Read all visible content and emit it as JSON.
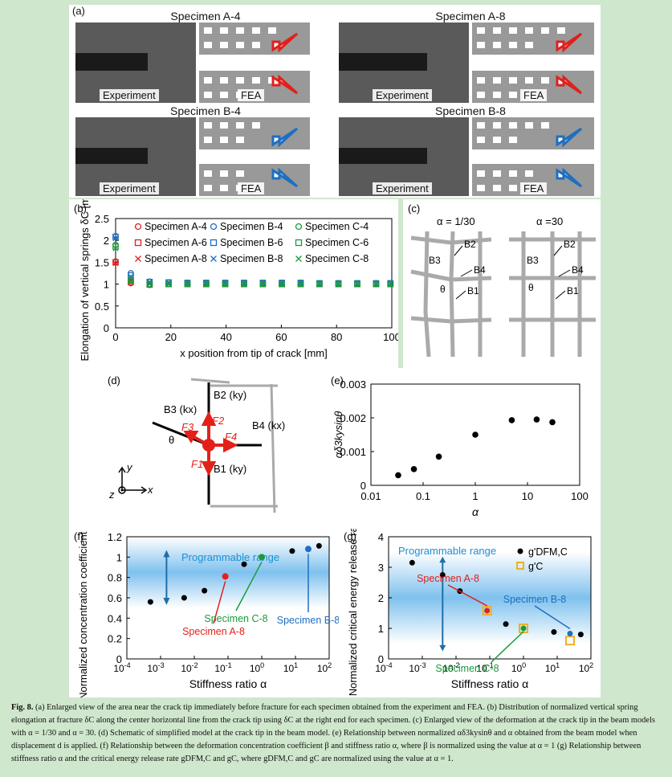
{
  "panel_a": {
    "label": "(a)",
    "specimens": [
      {
        "title": "Specimen A-4",
        "exp": "Experiment",
        "fea": "FEA",
        "arrow_color": "#e0201c"
      },
      {
        "title": "Specimen A-8",
        "exp": "Experiment",
        "fea": "FEA",
        "arrow_color": "#e0201c"
      },
      {
        "title": "Specimen B-4",
        "exp": "Experiment",
        "fea": "FEA",
        "arrow_color": "#1e6fc0"
      },
      {
        "title": "Specimen B-8",
        "exp": "Experiment",
        "fea": "FEA",
        "arrow_color": "#1e6fc0"
      }
    ]
  },
  "panel_c": {
    "label": "(c)",
    "left_title": "α = 1/30",
    "right_title": "α =30",
    "b1": "B1",
    "b2": "B2",
    "b3": "B3",
    "b4": "B4",
    "theta": "θ"
  },
  "panel_d": {
    "label": "(d)",
    "b1": "B1 (ky)",
    "b2": "B2 (ky)",
    "b3": "B3 (kx)",
    "b4": "B4 (kx)",
    "f1": "F1",
    "f2": "F2",
    "f3": "F3",
    "f4": "F4",
    "theta": "θ",
    "axis_x": "x",
    "axis_y": "y",
    "axis_z": "z"
  },
  "chart_data": [
    {
      "panel": "(b)",
      "type": "scatter",
      "xlabel": "x position from tip of crack [mm]",
      "ylabel": "Elongation of vertical springs δC [mm]",
      "xlim": [
        0,
        100
      ],
      "ylim": [
        0,
        2.5
      ],
      "xticks": [
        "0",
        "20",
        "40",
        "60",
        "80",
        "100"
      ],
      "yticks": [
        "0",
        "0.5",
        "1",
        "1.5",
        "2",
        "2.5"
      ],
      "x": [
        0,
        5.5,
        12.3,
        19.2,
        26,
        32.8,
        39.7,
        46.5,
        53.3,
        60.2,
        67,
        73.8,
        80.7,
        87.5,
        94.3,
        99.5
      ],
      "series": [
        {
          "name": "Specimen A-4",
          "color": "#e0201c",
          "marker": "circle",
          "values": [
            1.52,
            1.02,
            0.98,
            1.0,
            1.0,
            1.0,
            1.0,
            1.0,
            1.0,
            1.0,
            1.0,
            1.0,
            1.0,
            1.0,
            1.0,
            1.0
          ]
        },
        {
          "name": "Specimen A-6",
          "color": "#e0201c",
          "marker": "square",
          "values": [
            1.5,
            1.05,
            0.99,
            1.0,
            1.0,
            1.0,
            1.0,
            1.0,
            1.0,
            1.0,
            1.0,
            1.0,
            1.0,
            1.0,
            1.0,
            1.0
          ]
        },
        {
          "name": "Specimen A-8",
          "color": "#e0201c",
          "marker": "x",
          "values": [
            1.48,
            1.1,
            1.02,
            1.0,
            1.0,
            1.0,
            1.0,
            1.0,
            1.0,
            1.0,
            1.0,
            1.0,
            1.0,
            1.0,
            1.0,
            1.0
          ]
        },
        {
          "name": "Specimen B-4",
          "color": "#1e6fc0",
          "marker": "circle",
          "values": [
            2.1,
            1.25,
            1.06,
            1.04,
            1.03,
            1.03,
            1.03,
            1.03,
            1.03,
            1.03,
            1.03,
            1.02,
            1.02,
            1.02,
            1.02,
            1.02
          ]
        },
        {
          "name": "Specimen B-6",
          "color": "#1e6fc0",
          "marker": "square",
          "values": [
            2.08,
            1.2,
            1.05,
            1.04,
            1.03,
            1.03,
            1.03,
            1.03,
            1.03,
            1.03,
            1.03,
            1.02,
            1.02,
            1.02,
            1.02,
            1.02
          ]
        },
        {
          "name": "Specimen B-8",
          "color": "#1e6fc0",
          "marker": "x",
          "values": [
            2.05,
            1.15,
            1.05,
            1.03,
            1.03,
            1.03,
            1.03,
            1.03,
            1.03,
            1.03,
            1.03,
            1.02,
            1.02,
            1.02,
            1.02,
            1.02
          ]
        },
        {
          "name": "Specimen C-4",
          "color": "#1a9a3c",
          "marker": "circle",
          "values": [
            1.9,
            1.1,
            1.0,
            1.0,
            1.0,
            1.0,
            1.0,
            1.0,
            1.0,
            1.0,
            1.0,
            1.0,
            1.0,
            1.0,
            1.0,
            1.0
          ]
        },
        {
          "name": "Specimen C-6",
          "color": "#1a9a3c",
          "marker": "square",
          "values": [
            1.86,
            1.08,
            1.0,
            1.0,
            1.0,
            1.0,
            1.0,
            1.0,
            1.0,
            1.0,
            1.0,
            1.0,
            1.0,
            1.0,
            1.0,
            1.0
          ]
        },
        {
          "name": "Specimen C-8",
          "color": "#1a9a3c",
          "marker": "x",
          "values": [
            1.82,
            1.06,
            1.0,
            1.0,
            1.0,
            1.0,
            1.0,
            1.0,
            1.0,
            1.0,
            1.0,
            1.0,
            1.0,
            1.0,
            1.0,
            1.0
          ]
        }
      ]
    },
    {
      "panel": "(e)",
      "type": "scatter",
      "xscale": "log",
      "xlabel": "α",
      "ylabel": "αδ3kysinθ",
      "xlim": [
        0.01,
        100
      ],
      "ylim": [
        0,
        0.003
      ],
      "xticks": [
        "0.01",
        "0.1",
        "1",
        "10",
        "100"
      ],
      "yticks": [
        "0",
        "0.001",
        "0.002",
        "0.003"
      ],
      "x": [
        0.0333,
        0.0667,
        0.2,
        1,
        5,
        15,
        30
      ],
      "y": [
        0.0003,
        0.00048,
        0.00085,
        0.0015,
        0.00193,
        0.00195,
        0.00187
      ]
    },
    {
      "panel": "(f)",
      "type": "scatter",
      "xscale": "log",
      "xlabel": "Stiffness ratio α",
      "ylabel": "Normalized concentration coefficient β/βα=1",
      "xlim": [
        0.0001,
        100
      ],
      "ylim": [
        0,
        1.2
      ],
      "yticks": [
        "0",
        "0.2",
        "0.4",
        "0.6",
        "0.8",
        "1",
        "1.2"
      ],
      "xticks": [
        "10-4",
        "10-3",
        "10-2",
        "10-1",
        "100",
        "101",
        "102"
      ],
      "range_label": "Programmable range",
      "x": [
        0.0005,
        0.005,
        0.02,
        0.3,
        8,
        50
      ],
      "y": [
        0.56,
        0.6,
        0.67,
        0.93,
        1.06,
        1.11
      ],
      "highlights": [
        {
          "name": "Specimen A-8",
          "x": 0.0833,
          "y": 0.81,
          "color": "#e0201c"
        },
        {
          "name": "Specimen C-8",
          "x": 1,
          "y": 1.0,
          "color": "#1a9a3c"
        },
        {
          "name": "Specimen B-8",
          "x": 24,
          "y": 1.08,
          "color": "#1e6fc0"
        }
      ]
    },
    {
      "panel": "(g)",
      "type": "scatter",
      "xscale": "log",
      "xlabel": "Stiffness ratio α",
      "ylabel": "Normalized critical energy release rate g'C",
      "xlim": [
        0.0001,
        100
      ],
      "ylim": [
        0,
        4
      ],
      "yticks": [
        "0",
        "1",
        "2",
        "3",
        "4"
      ],
      "xticks": [
        "10-4",
        "10-3",
        "10-2",
        "10-1",
        "100",
        "101",
        "102"
      ],
      "range_label": "Programmable range",
      "legend": [
        "g'DFM,C",
        "g'C"
      ],
      "x": [
        0.0005,
        0.004,
        0.013,
        0.3,
        8,
        50
      ],
      "y": [
        3.15,
        2.75,
        2.22,
        1.14,
        0.88,
        0.8
      ],
      "squares": [
        {
          "name": "Specimen A-8",
          "x": 0.0833,
          "y": 1.58,
          "dot": 1.58,
          "color": "#e0201c"
        },
        {
          "name": "Specimen C-8",
          "x": 1,
          "y": 1.0,
          "dot": 1.0,
          "color": "#1a9a3c"
        },
        {
          "name": "Specimen B-8",
          "x": 24,
          "y": 0.6,
          "dot": 0.83,
          "color": "#1e6fc0"
        }
      ]
    }
  ],
  "caption": {
    "fig": "Fig. 8.",
    "text": " (a) Enlarged view of the area near the crack tip immediately before fracture for each specimen obtained from the experiment and FEA. (b) Distribution of normalized vertical spring elongation at fracture δC along the center horizontal line from the crack tip using δC at the right end for each specimen. (c) Enlarged view of the deformation at the crack tip in the beam models with α = 1/30 and α = 30. (d) Schematic of simplified model at the crack tip in the beam model. (e) Relationship between normalized αδ3kysinθ and α obtained from the beam model when displacement d is applied. (f) Relationship between the deformation concentration coefficient β and stiffness ratio α, where β is normalized using the value at α = 1 (g) Relationship between stiffness ratio α and the critical energy release rate gDFM,C and gC, where gDFM,C and gC are normalized using the value at α = 1."
  }
}
